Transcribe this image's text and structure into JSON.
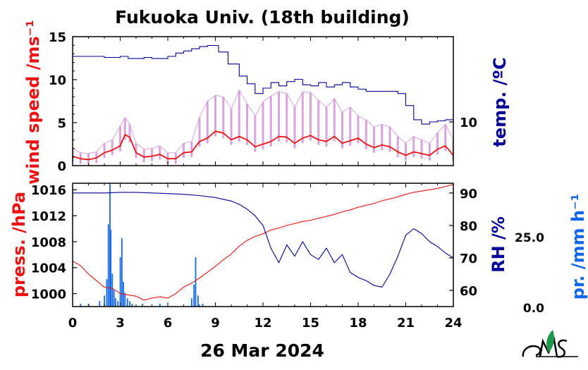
{
  "title": "Fukuoka Univ. (18th building)",
  "date_label": "26 Mar 2024",
  "colors": {
    "wind": "#ee1111",
    "wind_range": "#d9a3dd",
    "temp": "#000099",
    "press": "#ee1111",
    "rh": "#000099",
    "precip": "#1166ee",
    "frame": "#000000",
    "logo_green": "#1a9a4a"
  },
  "chart_data": [
    {
      "type": "line",
      "name": "wind and temperature",
      "ylabel_left": "wind speed /ms⁻¹",
      "ylabel_right": "temp. /ºC",
      "ylim_left": [
        0,
        15
      ],
      "yticks_left": [
        "0",
        "5",
        "10",
        "15"
      ],
      "yticks_right": [
        "10"
      ],
      "xlim": [
        0,
        24
      ],
      "series": [
        {
          "name": "wind speed",
          "x": [
            0,
            0.5,
            1,
            1.5,
            2,
            2.5,
            3,
            3.3,
            3.6,
            4,
            4.5,
            5,
            5.5,
            6,
            6.5,
            7,
            7.5,
            8,
            8.5,
            9,
            9.5,
            10,
            10.5,
            11,
            11.5,
            12,
            12.5,
            13,
            13.5,
            14,
            14.5,
            15,
            15.5,
            16,
            16.5,
            17,
            17.5,
            18,
            18.5,
            19,
            19.5,
            20,
            20.5,
            21,
            21.5,
            22,
            22.5,
            23,
            23.5,
            24
          ],
          "y": [
            1.1,
            0.8,
            0.7,
            0.9,
            1.5,
            1.8,
            2.3,
            3.6,
            3.3,
            1.5,
            1.0,
            1.1,
            1.3,
            0.8,
            0.8,
            1.5,
            1.6,
            2.8,
            3.2,
            4.0,
            3.8,
            3.0,
            3.4,
            3.0,
            2.2,
            2.5,
            2.8,
            3.4,
            3.3,
            2.6,
            3.2,
            3.5,
            3.0,
            2.8,
            3.4,
            2.6,
            2.9,
            3.2,
            2.5,
            2.1,
            2.4,
            2.2,
            1.6,
            1.2,
            1.6,
            1.4,
            1.2,
            1.9,
            2.3,
            1.2
          ]
        },
        {
          "name": "wind speed max",
          "x": [
            0,
            0.5,
            1,
            1.5,
            2,
            2.5,
            3,
            3.3,
            3.6,
            4,
            4.5,
            5,
            5.5,
            6,
            6.5,
            7,
            7.5,
            8,
            8.5,
            9,
            9.5,
            10,
            10.5,
            11,
            11.5,
            12,
            12.5,
            13,
            13.5,
            14,
            14.5,
            15,
            15.5,
            16,
            16.5,
            17,
            17.5,
            18,
            18.5,
            19,
            19.5,
            20,
            20.5,
            21,
            21.5,
            22,
            22.5,
            23,
            23.5,
            24
          ],
          "y": [
            2.0,
            1.5,
            1.4,
            1.6,
            2.6,
            3.0,
            4.6,
            5.6,
            4.8,
            2.6,
            1.9,
            2.0,
            2.3,
            1.5,
            1.5,
            2.6,
            2.8,
            5.6,
            7.5,
            8.2,
            8.0,
            6.6,
            8.8,
            7.2,
            5.8,
            7.4,
            8.1,
            8.6,
            8.4,
            6.8,
            8.6,
            8.5,
            7.6,
            6.8,
            7.8,
            6.2,
            6.8,
            5.8,
            5.3,
            4.5,
            4.8,
            4.5,
            3.4,
            2.6,
            3.4,
            3.0,
            2.6,
            3.8,
            4.8,
            3.0
          ]
        },
        {
          "name": "temperature",
          "x": [
            0,
            1,
            2,
            3,
            3.5,
            4,
            4.5,
            5,
            6,
            6.5,
            7,
            7.5,
            8,
            8.5,
            9,
            9.2,
            9.8,
            10.5,
            11,
            11.5,
            12,
            12.5,
            13,
            13.5,
            14,
            14.5,
            15,
            15.5,
            16,
            16.5,
            17,
            17.5,
            18,
            18.5,
            19,
            19.5,
            20,
            20.5,
            21,
            21.5,
            22,
            22.5,
            23,
            23.5,
            24
          ],
          "y": [
            16.0,
            16.0,
            15.9,
            16.0,
            15.8,
            15.8,
            15.9,
            15.8,
            16.0,
            16.3,
            16.5,
            16.7,
            16.9,
            17.0,
            17.0,
            16.4,
            15.3,
            14.2,
            13.5,
            12.6,
            13.1,
            13.6,
            13.3,
            13.7,
            13.9,
            13.4,
            13.3,
            13.6,
            13.2,
            13.4,
            13.6,
            13.2,
            13.0,
            12.8,
            12.8,
            12.8,
            12.8,
            12.6,
            11.5,
            10.2,
            9.8,
            10.0,
            10.1,
            10.2,
            10.1
          ]
        }
      ]
    },
    {
      "type": "line",
      "name": "pressure, humidity and precipitation",
      "ylabel_left": "press. /hPa",
      "ylabel_right": "RH /%",
      "ylabel_precip": "pr. /mm h⁻¹",
      "ylim_left": [
        998,
        1017
      ],
      "yticks_left": [
        "1000",
        "1004",
        "1008",
        "1012",
        "1016"
      ],
      "ylim_right": [
        55,
        93
      ],
      "yticks_right": [
        "60",
        "70",
        "80",
        "90"
      ],
      "precip_ticks": [
        "0.0",
        "25.0"
      ],
      "precip_ylim": [
        0,
        45
      ],
      "xlim": [
        0,
        24
      ],
      "xticks": [
        "0",
        "3",
        "6",
        "9",
        "12",
        "15",
        "18",
        "21",
        "24"
      ],
      "series": [
        {
          "name": "pressure",
          "x": [
            0,
            0.5,
            1,
            1.5,
            2,
            2.5,
            3,
            3.5,
            4,
            4.5,
            5,
            5.5,
            6,
            6.5,
            7,
            7.5,
            8,
            8.5,
            9,
            9.5,
            10,
            10.5,
            11,
            11.5,
            12,
            12.5,
            13,
            13.5,
            14,
            14.5,
            15,
            15.5,
            16,
            16.5,
            17,
            17.5,
            18,
            18.5,
            19,
            19.5,
            20,
            20.5,
            21,
            21.5,
            22,
            22.5,
            23,
            23.5,
            24
          ],
          "y": [
            1005.0,
            1004.3,
            1003.0,
            1002.0,
            1001.0,
            1000.8,
            1000.0,
            999.8,
            999.6,
            999.0,
            999.3,
            999.5,
            999.3,
            1000.0,
            1001.0,
            1001.6,
            1002.4,
            1003.3,
            1004.2,
            1005.2,
            1006.1,
            1007.3,
            1008.2,
            1008.8,
            1009.2,
            1009.8,
            1010.1,
            1010.5,
            1010.8,
            1011.1,
            1011.3,
            1011.6,
            1011.9,
            1012.2,
            1012.6,
            1012.9,
            1013.3,
            1013.6,
            1013.9,
            1014.3,
            1014.6,
            1014.9,
            1015.3,
            1015.6,
            1015.8,
            1016.0,
            1016.2,
            1016.5,
            1016.8
          ]
        },
        {
          "name": "relative humidity",
          "x": [
            0,
            1,
            2,
            3,
            4,
            5,
            6,
            7,
            8,
            9,
            10,
            10.5,
            11,
            11.5,
            12,
            12.5,
            13,
            13.5,
            14,
            14.5,
            15,
            15.5,
            16,
            16.5,
            17,
            17.5,
            18,
            18.5,
            19,
            19.5,
            20,
            20.5,
            21,
            21.5,
            22,
            22.5,
            23,
            23.5,
            24
          ],
          "y": [
            90.0,
            90.0,
            90.0,
            90.2,
            90.2,
            90.0,
            89.8,
            89.6,
            89.2,
            88.6,
            87.5,
            86.5,
            85.0,
            83.0,
            80.0,
            73.0,
            68.5,
            74.0,
            70.5,
            75.0,
            71.0,
            69.5,
            73.0,
            68.5,
            71.0,
            65.5,
            64.0,
            63.0,
            61.5,
            61.0,
            65.0,
            70.5,
            77.0,
            79.0,
            77.5,
            75.0,
            73.5,
            71.5,
            70.0
          ]
        }
      ],
      "precipitation": {
        "x": [
          0.5,
          1,
          1.7,
          2.0,
          2.15,
          2.25,
          2.35,
          2.4,
          2.5,
          2.6,
          2.7,
          2.85,
          3.0,
          3.1,
          3.2,
          3.3,
          3.45,
          3.6,
          3.75,
          4.4,
          5.5,
          7.5,
          7.65,
          7.75,
          7.9,
          8.2
        ],
        "y": [
          1,
          1,
          2,
          4,
          10,
          30,
          45,
          28,
          12,
          6,
          3,
          2,
          18,
          25,
          9,
          5,
          3,
          2,
          1,
          1,
          1,
          3,
          8,
          18,
          4,
          1
        ]
      }
    }
  ]
}
